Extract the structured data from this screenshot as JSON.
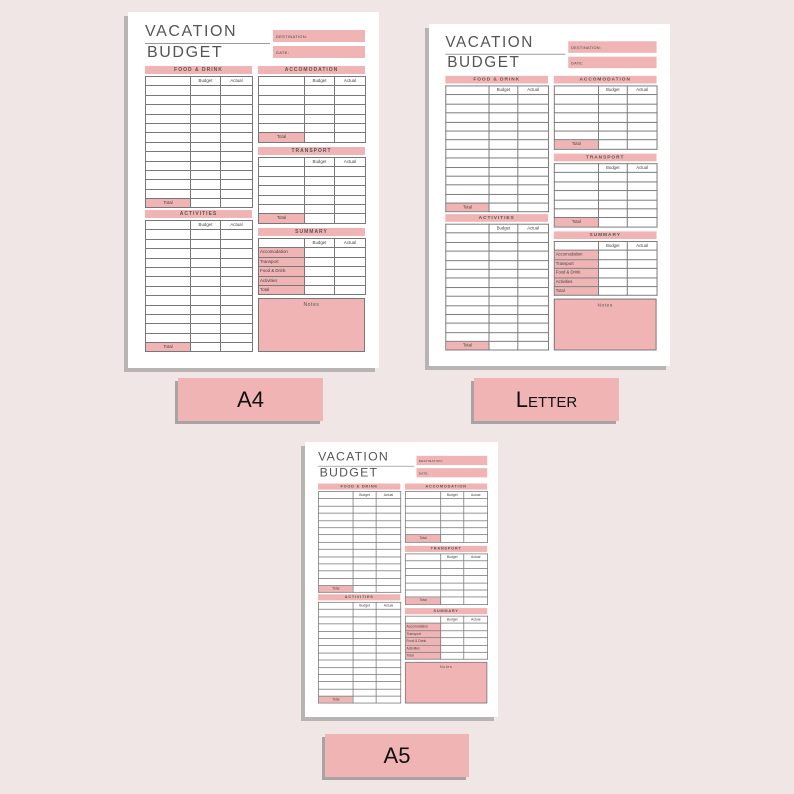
{
  "planner": {
    "title_line1": "VACATION",
    "title_line2": "BUDGET",
    "destination_label": "DESTINATION:",
    "date_label": "DATE:",
    "col_budget": "Budget",
    "col_actual": "Actual",
    "total_label": "Total",
    "sections": {
      "food": "FOOD & DRINK",
      "activities": "ACTIVITIES",
      "accomodation": "ACCOMODATION",
      "transport": "TRANSPORT",
      "summary": "SUMMARY"
    },
    "summary_rows": [
      "Accomodation",
      "Transport",
      "Food & Drink",
      "Activities",
      "Total"
    ],
    "notes_label": "Notes"
  },
  "pages": [
    {
      "size_label": "A4"
    },
    {
      "size_label": "Letter"
    },
    {
      "size_label": "A5"
    }
  ],
  "colors": {
    "accent": "#f1b4b4",
    "background": "#f0e6e5"
  }
}
